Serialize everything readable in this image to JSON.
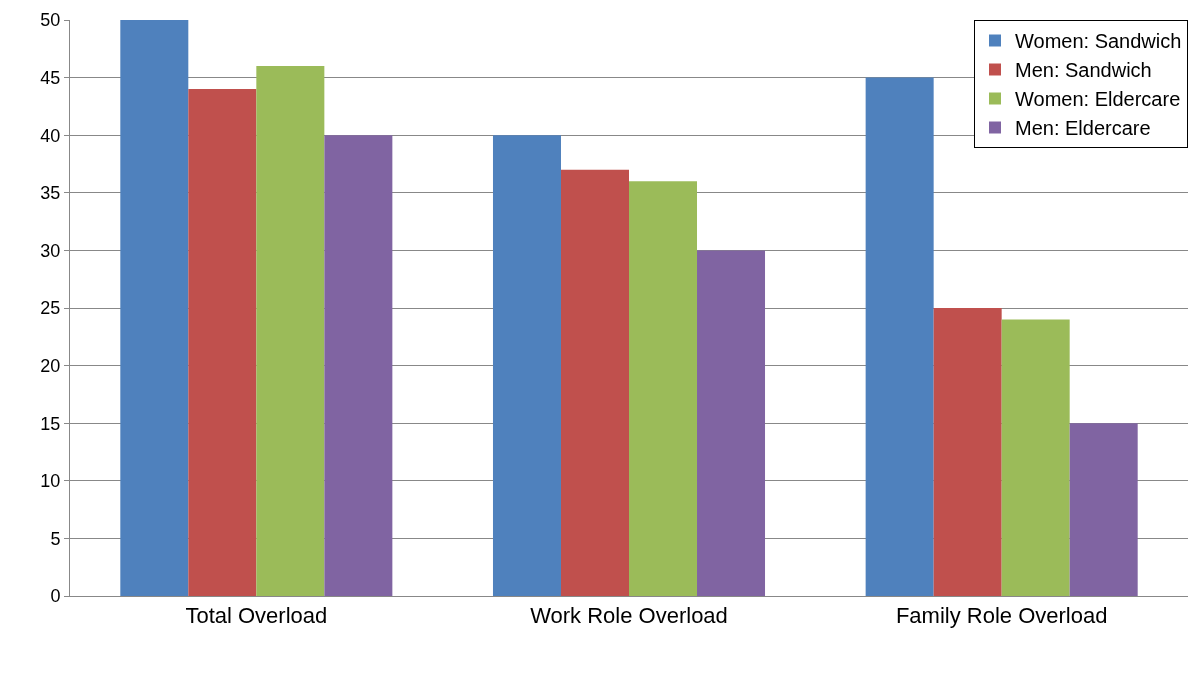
{
  "chart_data": {
    "type": "bar",
    "categories": [
      "Total Overload",
      "Work Role Overload",
      "Family Role Overload"
    ],
    "series": [
      {
        "name": "Women: Sandwich",
        "color": "#4f81bd",
        "values": [
          50,
          40,
          45
        ]
      },
      {
        "name": "Men: Sandwich",
        "color": "#c0504d",
        "values": [
          44,
          37,
          25
        ]
      },
      {
        "name": "Women: Eldercare",
        "color": "#9bbb59",
        "values": [
          46,
          36,
          24
        ]
      },
      {
        "name": "Men: Eldercare",
        "color": "#8064a2",
        "values": [
          40,
          30,
          15
        ]
      }
    ],
    "ylim": [
      0,
      50
    ],
    "yticks": [
      0,
      5,
      10,
      15,
      20,
      25,
      30,
      35,
      40,
      45,
      50
    ],
    "grid": "y",
    "legend": "top right"
  }
}
